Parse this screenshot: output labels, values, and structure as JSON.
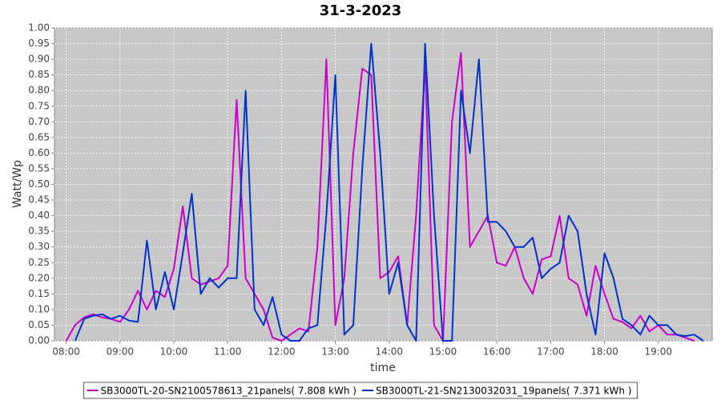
{
  "chart_data": {
    "type": "line",
    "title": "31-3-2023",
    "xlabel": "time",
    "ylabel": "Watt/Wp",
    "x": [
      "08:00",
      "08:10",
      "08:20",
      "08:30",
      "08:40",
      "08:50",
      "09:00",
      "09:10",
      "09:20",
      "09:30",
      "09:40",
      "09:50",
      "10:00",
      "10:10",
      "10:20",
      "10:30",
      "10:40",
      "10:50",
      "11:00",
      "11:10",
      "11:20",
      "11:30",
      "11:40",
      "11:50",
      "12:00",
      "12:10",
      "12:20",
      "12:30",
      "12:40",
      "12:50",
      "13:00",
      "13:10",
      "13:20",
      "13:30",
      "13:40",
      "13:50",
      "14:00",
      "14:10",
      "14:20",
      "14:30",
      "14:40",
      "14:50",
      "15:00",
      "15:10",
      "15:20",
      "15:30",
      "15:40",
      "15:50",
      "16:00",
      "16:10",
      "16:20",
      "16:30",
      "16:40",
      "16:50",
      "17:00",
      "17:10",
      "17:20",
      "17:30",
      "17:40",
      "17:50",
      "18:00",
      "18:10",
      "18:20",
      "18:30",
      "18:40",
      "18:50",
      "19:00",
      "19:10",
      "19:20",
      "19:30",
      "19:40",
      "19:50"
    ],
    "series": [
      {
        "name": "SB3000TL-20-SN2100578613_21panels( 7.808 kWh )",
        "color": "#cc00cc",
        "values": [
          0.0,
          0.05,
          0.075,
          0.085,
          0.075,
          0.07,
          0.06,
          0.1,
          0.16,
          0.1,
          0.16,
          0.14,
          0.23,
          0.43,
          0.2,
          0.18,
          0.19,
          0.2,
          0.24,
          0.77,
          0.2,
          0.15,
          0.1,
          0.01,
          0.0,
          0.02,
          0.04,
          0.03,
          0.3,
          0.9,
          0.05,
          0.2,
          0.6,
          0.87,
          0.85,
          0.2,
          0.22,
          0.27,
          0.05,
          0.4,
          0.88,
          0.05,
          0.0,
          0.7,
          0.92,
          0.3,
          0.35,
          0.4,
          0.25,
          0.24,
          0.3,
          0.2,
          0.15,
          0.26,
          0.27,
          0.4,
          0.2,
          0.18,
          0.08,
          0.24,
          0.15,
          0.07,
          0.06,
          0.04,
          0.08,
          0.03,
          0.05,
          0.02,
          0.02,
          0.01,
          0.0,
          null
        ]
      },
      {
        "name": "SB3000TL-21-SN2130032031_19panels( 7.371 kWh )",
        "color": "#0033cc",
        "values": [
          null,
          0.0,
          0.07,
          0.08,
          0.085,
          0.07,
          0.08,
          0.065,
          0.06,
          0.32,
          0.1,
          0.22,
          0.1,
          0.28,
          0.47,
          0.15,
          0.2,
          0.17,
          0.2,
          0.2,
          0.8,
          0.1,
          0.05,
          0.14,
          0.02,
          0.0,
          0.0,
          0.04,
          0.05,
          0.4,
          0.85,
          0.02,
          0.05,
          0.55,
          0.95,
          0.6,
          0.15,
          0.25,
          0.05,
          0.0,
          0.95,
          0.4,
          0.0,
          0.0,
          0.8,
          0.6,
          0.9,
          0.38,
          0.38,
          0.35,
          0.3,
          0.3,
          0.33,
          0.2,
          0.23,
          0.25,
          0.4,
          0.35,
          0.15,
          0.02,
          0.28,
          0.2,
          0.07,
          0.05,
          0.02,
          0.08,
          0.05,
          0.05,
          0.02,
          0.015,
          0.02,
          0.0
        ]
      }
    ],
    "xlim": [
      "07:47",
      "20:00"
    ],
    "xticks": [
      "08:00",
      "09:00",
      "10:00",
      "11:00",
      "12:00",
      "13:00",
      "14:00",
      "15:00",
      "16:00",
      "17:00",
      "18:00",
      "19:00"
    ],
    "ylim": [
      0,
      1
    ],
    "yticks": [
      {
        "value": 0,
        "label": "0.00"
      },
      {
        "value": 0.05,
        "label": "0.05"
      },
      {
        "value": 0.1,
        "label": "0.10"
      },
      {
        "value": 0.15,
        "label": "0.15"
      },
      {
        "value": 0.2,
        "label": "0.20"
      },
      {
        "value": 0.25,
        "label": "0.25"
      },
      {
        "value": 0.3,
        "label": "0.30"
      },
      {
        "value": 0.35,
        "label": "0.35"
      },
      {
        "value": 0.4,
        "label": "0.40"
      },
      {
        "value": 0.45,
        "label": "0.45"
      },
      {
        "value": 0.5,
        "label": "0.50"
      },
      {
        "value": 0.55,
        "label": "0.55"
      },
      {
        "value": 0.6,
        "label": "0.60"
      },
      {
        "value": 0.65,
        "label": "0.65"
      },
      {
        "value": 0.7,
        "label": "0.70"
      },
      {
        "value": 0.75,
        "label": "0.75"
      },
      {
        "value": 0.8,
        "label": "0.80"
      },
      {
        "value": 0.85,
        "label": "0.85"
      },
      {
        "value": 0.9,
        "label": "0.90"
      },
      {
        "value": 0.95,
        "label": "0.95"
      },
      {
        "value": 1,
        "label": "1.00"
      }
    ],
    "grid": true,
    "legend": "bottom"
  }
}
